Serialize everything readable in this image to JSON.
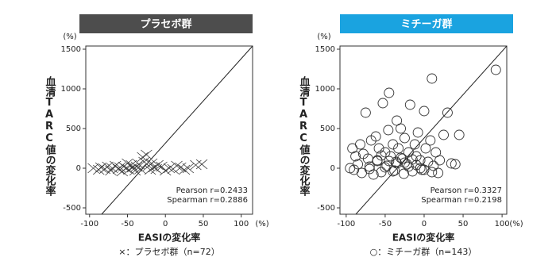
{
  "charts": [
    {
      "chart_data": {
        "type": "scatter",
        "title": "プラセボ群",
        "title_color": "#4d4d4d",
        "marker": "x",
        "color": "#333333",
        "x_label": "EASIの変化率",
        "y_label": "血清TARC値の変化率",
        "x_unit": "(%)",
        "y_unit": "(%)",
        "annotations": [
          "Pearson r=0.2433",
          "Spearman r=0.2886"
        ],
        "caption": "×：プラセボ群（n=72）",
        "xlim": [
          -105,
          115
        ],
        "ylim": [
          -580,
          1540
        ],
        "xticks": [
          -100,
          -50,
          0,
          50,
          100
        ],
        "yticks": [
          -500,
          0,
          500,
          1000,
          1500
        ],
        "x": [
          -95,
          -88,
          -85,
          -80,
          -76,
          -72,
          -70,
          -66,
          -62,
          -60,
          -57,
          -55,
          -52,
          -50,
          -48,
          -45,
          -43,
          -40,
          -38,
          -35,
          -33,
          -30,
          -28,
          -25,
          -22,
          -20,
          -18,
          -15,
          -12,
          -10,
          -5,
          0,
          5,
          10,
          15,
          20,
          25,
          30,
          40,
          48
        ],
        "y": [
          0,
          -20,
          10,
          -10,
          20,
          -30,
          0,
          30,
          -10,
          10,
          -40,
          20,
          0,
          60,
          -20,
          40,
          10,
          -30,
          20,
          50,
          -10,
          140,
          80,
          170,
          30,
          -20,
          60,
          10,
          -10,
          40,
          20,
          -30,
          0,
          -10,
          30,
          10,
          -20,
          0,
          40,
          50
        ]
      }
    },
    {
      "chart_data": {
        "type": "scatter",
        "title": "ミチーガ群",
        "title_color": "#1aa3e0",
        "marker": "circle",
        "color": "#333333",
        "x_label": "EASIの変化率",
        "y_label": "血清TARC値の変化率",
        "x_unit": "(%)",
        "y_unit": "(%)",
        "annotations": [
          "Pearson r=0.3327",
          "Spearman r=0.2198"
        ],
        "caption": "○：ミチーガ群（n=143）",
        "xlim": [
          -108,
          106
        ],
        "ylim": [
          -580,
          1540
        ],
        "xticks": [
          -100,
          -50,
          0,
          50,
          100
        ],
        "yticks": [
          -500,
          0,
          500,
          1000,
          1500
        ],
        "x": [
          -95,
          -92,
          -90,
          -88,
          -85,
          -82,
          -80,
          -78,
          -75,
          -72,
          -70,
          -68,
          -65,
          -62,
          -60,
          -58,
          -55,
          -53,
          -50,
          -48,
          -46,
          -45,
          -43,
          -40,
          -38,
          -36,
          -35,
          -33,
          -30,
          -28,
          -26,
          -25,
          -22,
          -20,
          -18,
          -15,
          -12,
          -10,
          -8,
          -5,
          -3,
          0,
          2,
          5,
          8,
          10,
          12,
          15,
          18,
          20,
          25,
          30,
          35,
          40,
          45,
          -70,
          -60,
          -50,
          -40,
          -35,
          -30,
          -20,
          -15,
          -10,
          0,
          10,
          -55,
          -45,
          -25,
          -5,
          92
        ],
        "y": [
          0,
          250,
          -20,
          150,
          50,
          300,
          -60,
          180,
          700,
          120,
          20,
          350,
          -80,
          400,
          100,
          250,
          -50,
          820,
          200,
          30,
          480,
          950,
          150,
          300,
          -30,
          80,
          600,
          250,
          500,
          120,
          -70,
          380,
          50,
          200,
          800,
          -40,
          300,
          150,
          450,
          100,
          -20,
          720,
          250,
          80,
          350,
          1130,
          30,
          200,
          -60,
          100,
          420,
          700,
          60,
          50,
          420,
          -10,
          90,
          10,
          -40,
          60,
          130,
          20,
          110,
          40,
          -20,
          -50,
          160,
          90,
          70,
          0,
          1240
        ]
      }
    }
  ]
}
